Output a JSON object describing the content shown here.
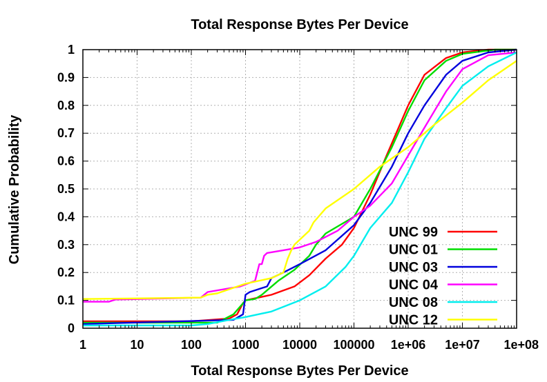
{
  "chart_data": {
    "type": "line",
    "title": "Total Response Bytes Per Device",
    "xlabel": "Total Response Bytes Per Device",
    "ylabel": "Cumulative Probability",
    "xscale": "log",
    "xlim": [
      1,
      100000000
    ],
    "ylim": [
      0,
      1
    ],
    "grid": true,
    "legend_position": "bottom-right",
    "xticks": [
      "1",
      "10",
      "100",
      "1000",
      "10000",
      "100000",
      "1e+06",
      "1e+07",
      "1e+08"
    ],
    "yticks": [
      "0",
      "0.1",
      "0.2",
      "0.3",
      "0.4",
      "0.5",
      "0.6",
      "0.7",
      "0.8",
      "0.9",
      "1"
    ],
    "series": [
      {
        "name": "UNC 99",
        "color": "#ff0000",
        "points": [
          [
            1,
            0.025
          ],
          [
            100,
            0.025
          ],
          [
            500,
            0.035
          ],
          [
            700,
            0.05
          ],
          [
            900,
            0.09
          ],
          [
            1000,
            0.1
          ],
          [
            3000,
            0.12
          ],
          [
            8000,
            0.15
          ],
          [
            15000,
            0.19
          ],
          [
            30000,
            0.25
          ],
          [
            60000,
            0.3
          ],
          [
            100000,
            0.36
          ],
          [
            200000,
            0.48
          ],
          [
            400000,
            0.62
          ],
          [
            1000000,
            0.8
          ],
          [
            2000000,
            0.91
          ],
          [
            5000000,
            0.97
          ],
          [
            10000000,
            0.99
          ],
          [
            30000000,
            1.0
          ],
          [
            100000000,
            1.0
          ]
        ]
      },
      {
        "name": "UNC 01",
        "color": "#00dd00",
        "points": [
          [
            1,
            0.02
          ],
          [
            300,
            0.02
          ],
          [
            600,
            0.05
          ],
          [
            1000,
            0.1
          ],
          [
            1500,
            0.105
          ],
          [
            2000,
            0.12
          ],
          [
            4000,
            0.17
          ],
          [
            8000,
            0.21
          ],
          [
            15000,
            0.26
          ],
          [
            20000,
            0.3
          ],
          [
            30000,
            0.34
          ],
          [
            100000,
            0.4
          ],
          [
            200000,
            0.5
          ],
          [
            500000,
            0.65
          ],
          [
            1000000,
            0.78
          ],
          [
            2000000,
            0.89
          ],
          [
            5000000,
            0.96
          ],
          [
            10000000,
            0.985
          ],
          [
            40000000,
            1.0
          ],
          [
            100000000,
            1.0
          ]
        ]
      },
      {
        "name": "UNC 03",
        "color": "#0000dd",
        "points": [
          [
            1,
            0.015
          ],
          [
            600,
            0.03
          ],
          [
            900,
            0.05
          ],
          [
            1000,
            0.12
          ],
          [
            1200,
            0.13
          ],
          [
            2500,
            0.15
          ],
          [
            3000,
            0.18
          ],
          [
            5000,
            0.2
          ],
          [
            10000,
            0.23
          ],
          [
            30000,
            0.28
          ],
          [
            100000,
            0.37
          ],
          [
            200000,
            0.45
          ],
          [
            500000,
            0.58
          ],
          [
            1000000,
            0.7
          ],
          [
            2000000,
            0.8
          ],
          [
            5000000,
            0.91
          ],
          [
            10000000,
            0.96
          ],
          [
            30000000,
            0.99
          ],
          [
            100000000,
            1.0
          ]
        ]
      },
      {
        "name": "UNC 04",
        "color": "#ff00ff",
        "points": [
          [
            1,
            0.095
          ],
          [
            3,
            0.095
          ],
          [
            4,
            0.103
          ],
          [
            150,
            0.11
          ],
          [
            200,
            0.13
          ],
          [
            800,
            0.15
          ],
          [
            1500,
            0.17
          ],
          [
            1800,
            0.23
          ],
          [
            2000,
            0.23
          ],
          [
            2200,
            0.26
          ],
          [
            2500,
            0.27
          ],
          [
            5000,
            0.28
          ],
          [
            10000,
            0.29
          ],
          [
            20000,
            0.31
          ],
          [
            50000,
            0.35
          ],
          [
            100000,
            0.4
          ],
          [
            200000,
            0.44
          ],
          [
            500000,
            0.52
          ],
          [
            1000000,
            0.62
          ],
          [
            2000000,
            0.72
          ],
          [
            5000000,
            0.85
          ],
          [
            10000000,
            0.93
          ],
          [
            30000000,
            0.98
          ],
          [
            100000000,
            0.99
          ]
        ]
      },
      {
        "name": "UNC 08",
        "color": "#00eeee",
        "points": [
          [
            1,
            0.01
          ],
          [
            100,
            0.01
          ],
          [
            200,
            0.015
          ],
          [
            500,
            0.03
          ],
          [
            1000,
            0.04
          ],
          [
            3000,
            0.06
          ],
          [
            10000,
            0.1
          ],
          [
            30000,
            0.15
          ],
          [
            70000,
            0.22
          ],
          [
            100000,
            0.26
          ],
          [
            200000,
            0.36
          ],
          [
            500000,
            0.45
          ],
          [
            1000000,
            0.56
          ],
          [
            2000000,
            0.68
          ],
          [
            5000000,
            0.79
          ],
          [
            10000000,
            0.87
          ],
          [
            30000000,
            0.94
          ],
          [
            100000000,
            0.99
          ]
        ]
      },
      {
        "name": "UNC 12",
        "color": "#ffff00",
        "points": [
          [
            1,
            0.105
          ],
          [
            150,
            0.11
          ],
          [
            200,
            0.12
          ],
          [
            300,
            0.125
          ],
          [
            1000,
            0.16
          ],
          [
            3000,
            0.18
          ],
          [
            5000,
            0.2
          ],
          [
            6000,
            0.25
          ],
          [
            7000,
            0.28
          ],
          [
            8000,
            0.3
          ],
          [
            15000,
            0.35
          ],
          [
            18000,
            0.38
          ],
          [
            30000,
            0.43
          ],
          [
            100000,
            0.5
          ],
          [
            300000,
            0.58
          ],
          [
            1000000,
            0.65
          ],
          [
            3000000,
            0.73
          ],
          [
            10000000,
            0.81
          ],
          [
            30000000,
            0.89
          ],
          [
            100000000,
            0.96
          ]
        ]
      }
    ]
  }
}
